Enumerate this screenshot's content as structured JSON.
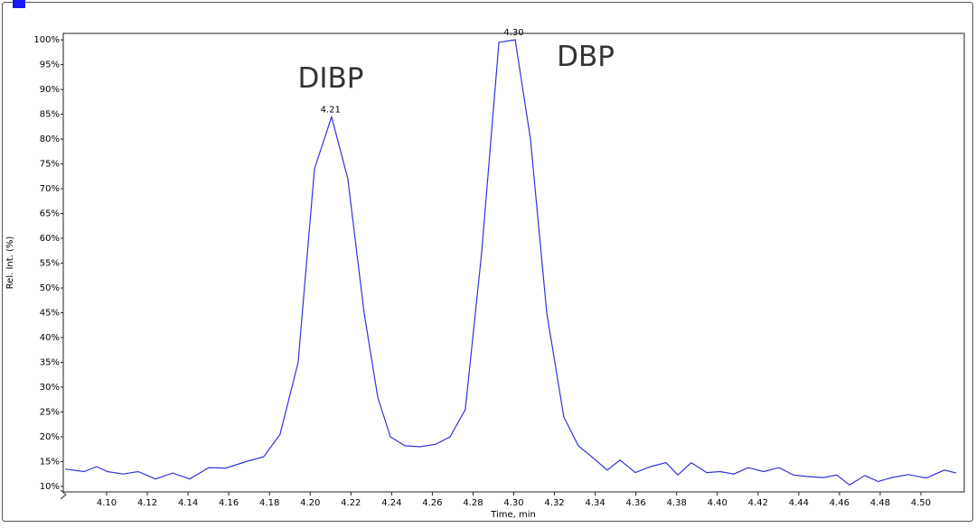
{
  "chart_data": {
    "type": "line",
    "x_label": "Time, min",
    "y_label": "Rel. Int. (%)",
    "annotations": [
      "DIBP",
      "DBP"
    ],
    "peak_labels": [
      {
        "x": 4.21,
        "label": "4.21"
      },
      {
        "x": 4.3,
        "label": "4.30"
      }
    ],
    "xlim": [
      4.0787,
      4.5213
    ],
    "ylim": [
      8.9,
      101.3
    ],
    "xticks": [
      {
        "value": 4.1,
        "label": "4.10"
      },
      {
        "value": 4.12,
        "label": "4.12"
      },
      {
        "value": 4.14,
        "label": "4.14"
      },
      {
        "value": 4.16,
        "label": "4.16"
      },
      {
        "value": 4.18,
        "label": "4.18"
      },
      {
        "value": 4.2,
        "label": "4.20"
      },
      {
        "value": 4.22,
        "label": "4.22"
      },
      {
        "value": 4.24,
        "label": "4.24"
      },
      {
        "value": 4.26,
        "label": "4.26"
      },
      {
        "value": 4.28,
        "label": "4.28"
      },
      {
        "value": 4.3,
        "label": "4.30"
      },
      {
        "value": 4.32,
        "label": "4.32"
      },
      {
        "value": 4.34,
        "label": "4.34"
      },
      {
        "value": 4.36,
        "label": "4.36"
      },
      {
        "value": 4.38,
        "label": "4.38"
      },
      {
        "value": 4.4,
        "label": "4.40"
      },
      {
        "value": 4.42,
        "label": "4.42"
      },
      {
        "value": 4.44,
        "label": "4.44"
      },
      {
        "value": 4.46,
        "label": "4.46"
      },
      {
        "value": 4.48,
        "label": "4.48"
      },
      {
        "value": 4.5,
        "label": "4.50"
      }
    ],
    "yticks": [
      {
        "value": 10,
        "label": "10%"
      },
      {
        "value": 15,
        "label": "15%"
      },
      {
        "value": 20,
        "label": "20%"
      },
      {
        "value": 25,
        "label": "25%"
      },
      {
        "value": 30,
        "label": "30%"
      },
      {
        "value": 35,
        "label": "35%"
      },
      {
        "value": 40,
        "label": "40%"
      },
      {
        "value": 45,
        "label": "45%"
      },
      {
        "value": 50,
        "label": "50%"
      },
      {
        "value": 55,
        "label": "55%"
      },
      {
        "value": 60,
        "label": "60%"
      },
      {
        "value": 65,
        "label": "65%"
      },
      {
        "value": 70,
        "label": "70%"
      },
      {
        "value": 75,
        "label": "75%"
      },
      {
        "value": 80,
        "label": "80%"
      },
      {
        "value": 85,
        "label": "85%"
      },
      {
        "value": 90,
        "label": "90%"
      },
      {
        "value": 95,
        "label": "95%"
      },
      {
        "value": 100,
        "label": "100%"
      }
    ],
    "grid": false,
    "color": "#3333dd",
    "x": [
      4.0796,
      4.0889,
      4.0951,
      4.1004,
      4.108,
      4.1155,
      4.124,
      4.1324,
      4.1408,
      4.1502,
      4.1586,
      4.1684,
      4.1772,
      4.1852,
      4.1941,
      4.2021,
      4.2105,
      4.2185,
      4.2265,
      4.2332,
      4.2394,
      4.2465,
      4.254,
      4.2616,
      4.2687,
      4.2762,
      4.2842,
      4.2927,
      4.3007,
      4.3082,
      4.3162,
      4.3246,
      4.3317,
      4.3397,
      4.3459,
      4.3522,
      4.3597,
      4.3672,
      4.3748,
      4.3806,
      4.3872,
      4.3948,
      4.4014,
      4.4081,
      4.4152,
      4.4227,
      4.4303,
      4.4374,
      4.4441,
      4.4521,
      4.4587,
      4.4649,
      4.4725,
      4.4791,
      4.4858,
      4.4938,
      4.5027,
      4.5116,
      4.5173
    ],
    "values": [
      13.5,
      13,
      14,
      13,
      12.5,
      13,
      11.5,
      12.7,
      11.5,
      13.8,
      13.7,
      15,
      16,
      20.5,
      35,
      74,
      84.5,
      72,
      45,
      28,
      20,
      18.2,
      18,
      18.5,
      20,
      25.5,
      57,
      99.5,
      100,
      80,
      45,
      24,
      18.2,
      15.5,
      13.3,
      15.3,
      12.8,
      14,
      14.8,
      12.3,
      14.8,
      12.8,
      13,
      12.5,
      13.8,
      13,
      13.8,
      12.3,
      12,
      11.8,
      12.3,
      10.3,
      12.2,
      11,
      11.8,
      12.4,
      11.7,
      13.3,
      12.7
    ]
  }
}
